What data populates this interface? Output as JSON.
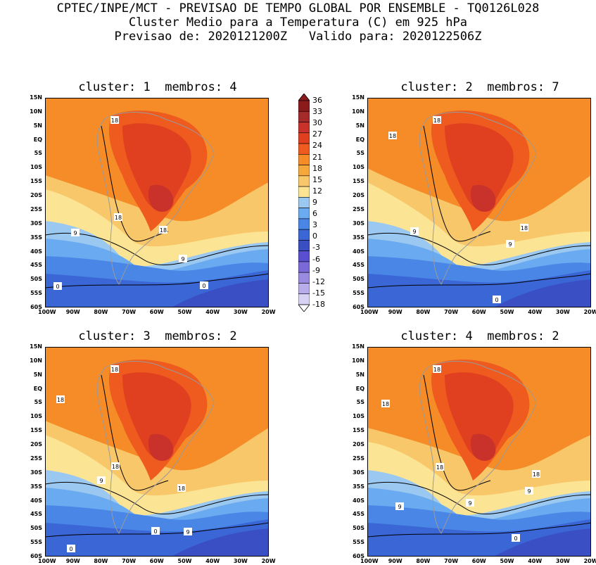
{
  "header": {
    "line1": "CPTEC/INPE/MCT - PREVISAO DE TEMPO GLOBAL POR ENSEMBLE - TQ0126L028",
    "line2": "Cluster Medio para a Temperatura (C) em 925 hPa",
    "line3": "Previsao de: 2020121200Z   Valido para: 2020122506Z"
  },
  "panels": [
    {
      "title": "cluster: 1  membros: 4"
    },
    {
      "title": "cluster: 2  membros: 7"
    },
    {
      "title": "cluster: 3  membros: 2"
    },
    {
      "title": "cluster: 4  membros: 2"
    }
  ],
  "lat_labels": [
    "15N",
    "10N",
    "5N",
    "EQ",
    "5S",
    "10S",
    "15S",
    "20S",
    "25S",
    "30S",
    "35S",
    "40S",
    "45S",
    "50S",
    "55S",
    "60S"
  ],
  "lon_labels": [
    "100W",
    "90W",
    "80W",
    "70W",
    "60W",
    "50W",
    "40W",
    "30W",
    "20W"
  ],
  "colorbar": {
    "levels": [
      "36",
      "33",
      "30",
      "27",
      "24",
      "21",
      "18",
      "15",
      "12",
      "9",
      "6",
      "3",
      "0",
      "-3",
      "-6",
      "-9",
      "-12",
      "-15",
      "-18"
    ],
    "colors": [
      "#8b1a1a",
      "#a52a2a",
      "#c8322a",
      "#e0401f",
      "#ef5a1e",
      "#f58c28",
      "#f7a83a",
      "#f8c76a",
      "#fbe494",
      "#9ac8f0",
      "#6aaaf0",
      "#4a86e6",
      "#3a66d6",
      "#3b4fc4",
      "#5a4fd0",
      "#7a6ad8",
      "#9a8ae0",
      "#b8acea",
      "#d8d2f4"
    ]
  },
  "contour_labels": {
    "panel1": [
      "18",
      "18",
      "18",
      "9",
      "9",
      "0",
      "0"
    ],
    "panel2": [
      "18",
      "18",
      "18",
      "9",
      "9",
      "0"
    ],
    "panel3": [
      "18",
      "18",
      "18",
      "18",
      "9",
      "9",
      "0",
      "0"
    ],
    "panel4": [
      "18",
      "18",
      "18",
      "18",
      "9",
      "9",
      "9",
      "0"
    ]
  }
}
